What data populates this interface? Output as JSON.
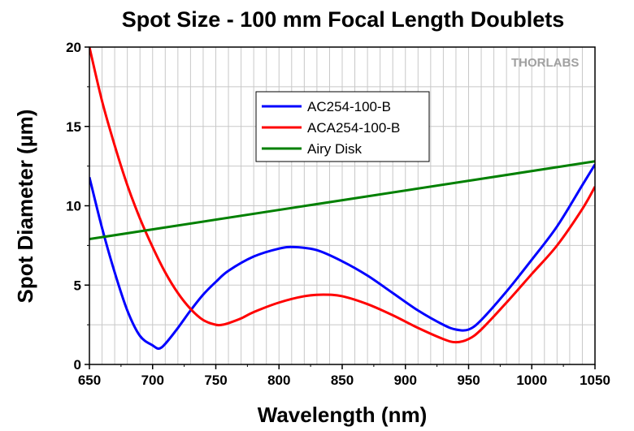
{
  "chart_data": {
    "type": "line",
    "title": "Spot Size - 100 mm Focal Length Doublets",
    "xlabel": "Wavelength (nm)",
    "ylabel": "Spot Diameter (µm)",
    "xlim": [
      650,
      1050
    ],
    "ylim": [
      0,
      20
    ],
    "xticks": [
      650,
      700,
      750,
      800,
      850,
      900,
      950,
      1000,
      1050
    ],
    "yticks": [
      0,
      5,
      10,
      15,
      20
    ],
    "grid": true,
    "legend_position": "upper-center",
    "series": [
      {
        "name": "AC254-100-B",
        "color": "#0000ff",
        "x": [
          650,
          660,
          670,
          680,
          690,
          700,
          705,
          710,
          720,
          730,
          740,
          750,
          760,
          780,
          800,
          812,
          830,
          850,
          870,
          890,
          910,
          930,
          940,
          950,
          960,
          980,
          1000,
          1020,
          1040,
          1050
        ],
        "y": [
          11.8,
          8.6,
          5.8,
          3.4,
          1.8,
          1.2,
          1.0,
          1.3,
          2.3,
          3.4,
          4.4,
          5.2,
          5.9,
          6.8,
          7.3,
          7.4,
          7.2,
          6.5,
          5.6,
          4.5,
          3.4,
          2.5,
          2.2,
          2.2,
          2.8,
          4.6,
          6.6,
          8.7,
          11.3,
          12.6
        ]
      },
      {
        "name": "ACA254-100-B",
        "color": "#ff0000",
        "x": [
          650,
          660,
          670,
          680,
          690,
          700,
          710,
          720,
          730,
          740,
          750,
          755,
          760,
          770,
          780,
          800,
          820,
          835,
          850,
          870,
          890,
          910,
          930,
          940,
          950,
          960,
          980,
          1000,
          1020,
          1040,
          1050
        ],
        "y": [
          20.0,
          16.6,
          13.8,
          11.3,
          9.2,
          7.4,
          5.8,
          4.5,
          3.5,
          2.8,
          2.5,
          2.5,
          2.6,
          2.9,
          3.3,
          3.9,
          4.3,
          4.4,
          4.3,
          3.8,
          3.1,
          2.3,
          1.6,
          1.4,
          1.6,
          2.2,
          3.9,
          5.7,
          7.5,
          9.8,
          11.2
        ]
      },
      {
        "name": "Airy Disk",
        "color": "#008000",
        "x": [
          650,
          1050
        ],
        "y": [
          7.9,
          12.8
        ]
      }
    ]
  },
  "branding": {
    "logo_text": "THORLABS"
  }
}
